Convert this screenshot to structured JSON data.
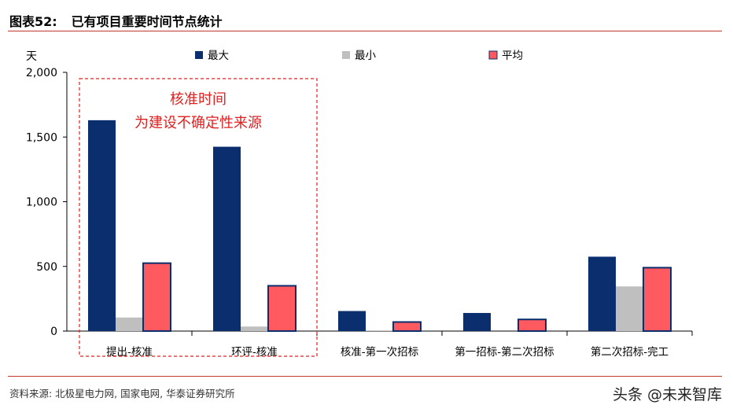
{
  "header": {
    "figure_label": "图表52:",
    "figure_title": "已有项目重要时间节点统计"
  },
  "footer": {
    "source": "资料来源: 北极星电力网, 国家电网, 华泰证券研究所",
    "watermark": "头条 @未来智库"
  },
  "chart_data": {
    "type": "bar",
    "ylabel": "天",
    "ylim": [
      0,
      2000
    ],
    "yticks": [
      "0",
      "500",
      "1,000",
      "1,500",
      "2,000"
    ],
    "ytick_values": [
      0,
      500,
      1000,
      1500,
      2000
    ],
    "categories": [
      "提出-核准",
      "环评-核准",
      "核准-第一次招标",
      "第一招标-第二次招标",
      "第二次招标-完工"
    ],
    "series": [
      {
        "name": "最大",
        "color": "#0b2f6e",
        "values": [
          1630,
          1425,
          155,
          140,
          575
        ]
      },
      {
        "name": "最小",
        "color": "#bfbfbf",
        "values": [
          105,
          35,
          5,
          0,
          345
        ]
      },
      {
        "name": "平均",
        "color": "#ff5a5f",
        "values": [
          525,
          350,
          70,
          90,
          490
        ]
      }
    ],
    "legend_position": "top",
    "grid": false,
    "annotation": {
      "lines": [
        "核准时间",
        "为建设不确定性来源"
      ],
      "color": "#e02020"
    }
  }
}
